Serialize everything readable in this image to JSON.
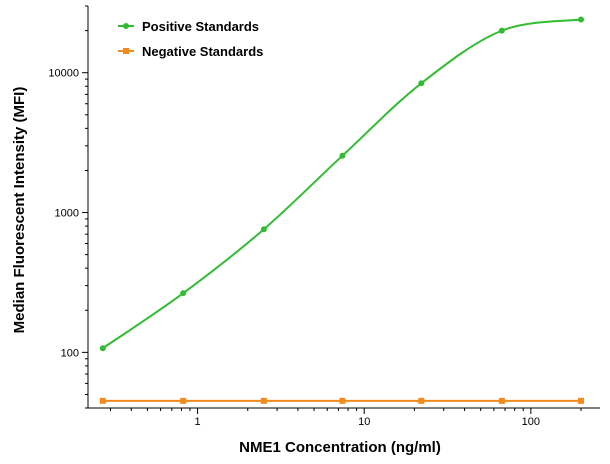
{
  "chart_data": {
    "type": "line",
    "xlabel": "NME1 Concentration (ng/ml)",
    "ylabel": "Median Fluorescent Intensity (MFI)",
    "x_scale": "log",
    "y_scale": "log",
    "xlim": [
      0.22,
      260
    ],
    "ylim": [
      40,
      30000
    ],
    "x_ticks": [
      1,
      10,
      100
    ],
    "x_tick_labels": [
      "1",
      "10",
      "100"
    ],
    "y_ticks": [
      100,
      1000,
      10000
    ],
    "y_tick_labels": [
      "100",
      "1000",
      "10000"
    ],
    "grid": false,
    "legend_position": "top-left",
    "series": [
      {
        "name": "Positive Standards",
        "color": "#33bb33",
        "marker": "circle",
        "x": [
          0.27,
          0.82,
          2.5,
          7.4,
          22,
          67,
          200
        ],
        "y": [
          107,
          265,
          760,
          2550,
          8400,
          20000,
          24000
        ]
      },
      {
        "name": "Negative Standards",
        "color": "#f28a1e",
        "marker": "square",
        "x": [
          0.27,
          0.82,
          2.5,
          7.4,
          22,
          67,
          200
        ],
        "y": [
          45,
          45,
          45,
          45,
          45,
          45,
          45
        ]
      }
    ]
  }
}
